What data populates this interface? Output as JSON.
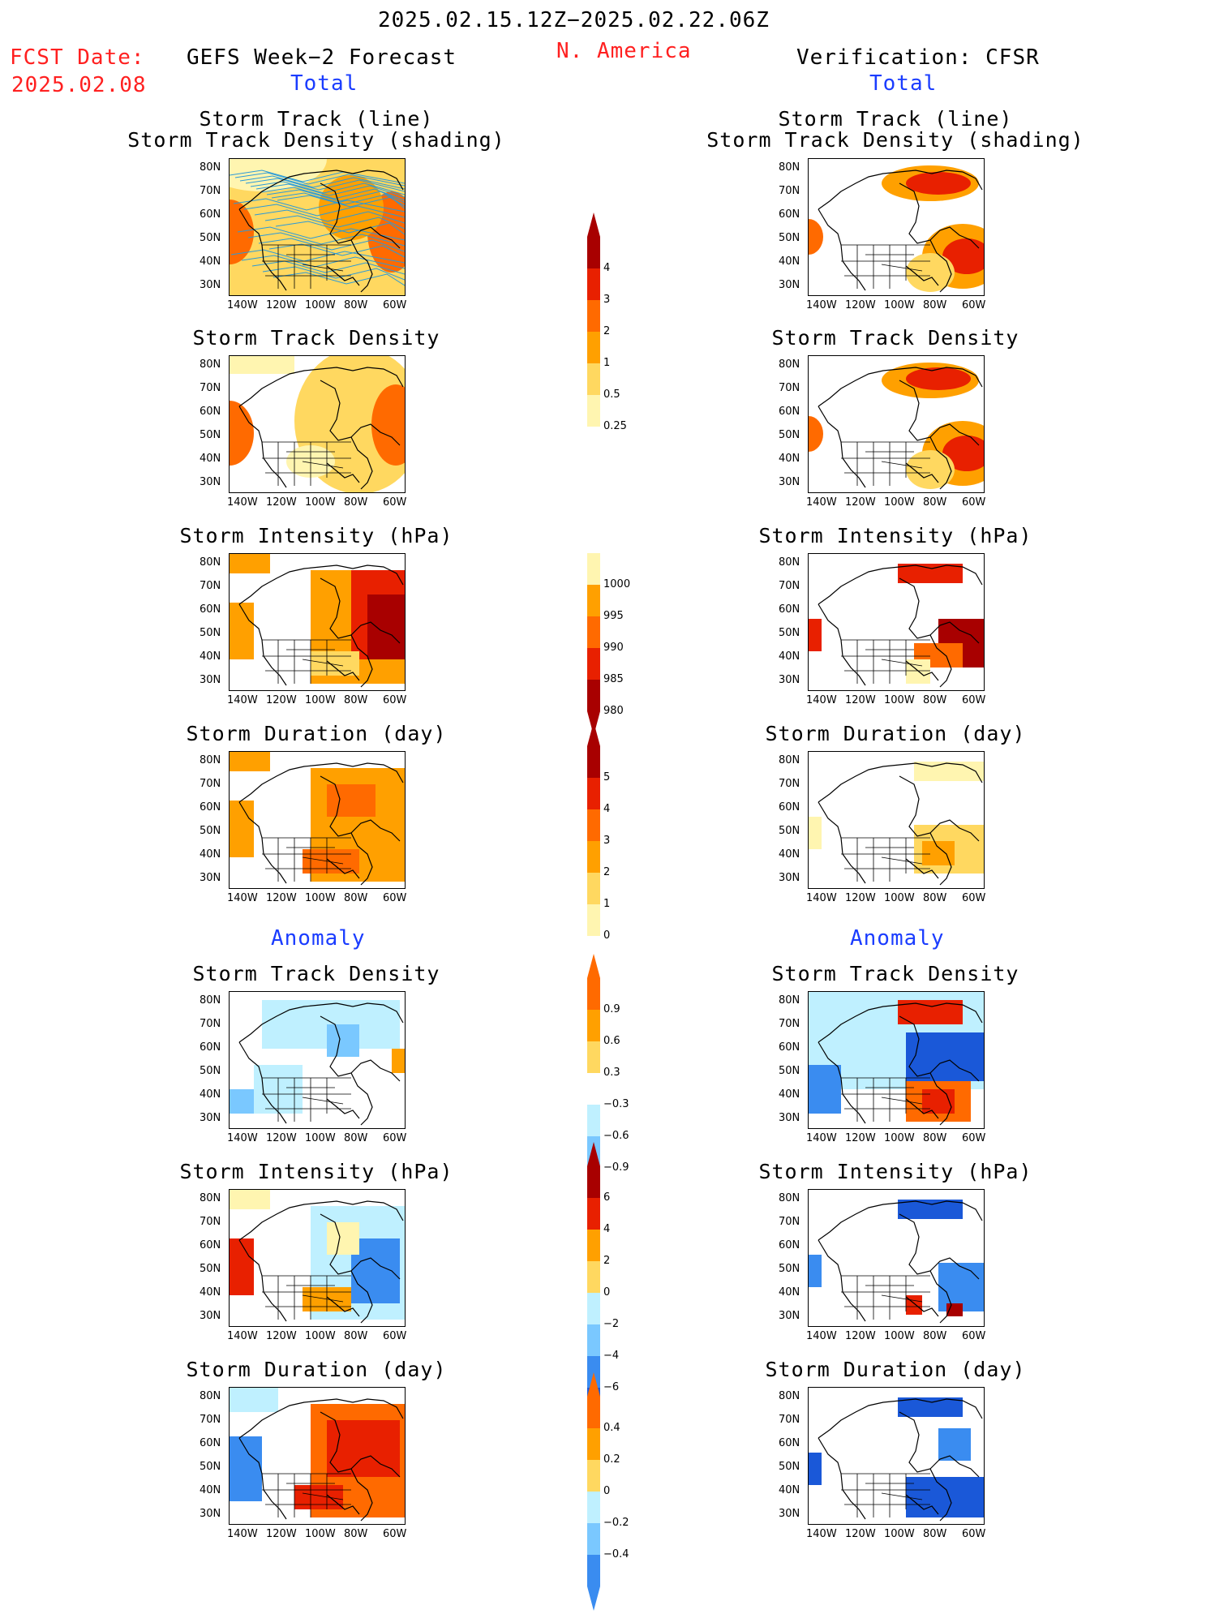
{
  "header": {
    "date_range": "2025.02.15.12Z−2025.02.22.06Z",
    "region": "N. America",
    "fcst_label": "FCST Date:",
    "fcst_date": "2025.02.08",
    "left_title": "GEFS Week−2 Forecast",
    "right_title": "Verification: CFSR",
    "section_total": "Total",
    "section_anomaly": "Anomaly"
  },
  "panel_titles": {
    "track_line": "Storm Track (line)",
    "track_shading": "Storm Track Density (shading)",
    "density": "Storm Track Density",
    "intensity": "Storm Intensity (hPa)",
    "duration": "Storm Duration (day)"
  },
  "axes": {
    "lat_labels": [
      "80N",
      "70N",
      "60N",
      "50N",
      "40N",
      "30N"
    ],
    "lon_labels": [
      "140W",
      "120W",
      "100W",
      "80W",
      "60W"
    ]
  },
  "colorbars": {
    "density_total": [
      "4",
      "3",
      "2",
      "1",
      "0.5",
      "0.25"
    ],
    "intensity_total": [
      "1000",
      "995",
      "990",
      "985",
      "980"
    ],
    "duration_total": [
      "5",
      "4",
      "3",
      "2",
      "1",
      "0"
    ],
    "density_anom": [
      "0.9",
      "0.6",
      "0.3",
      "−0.3",
      "−0.6",
      "−0.9"
    ],
    "intensity_anom": [
      "6",
      "4",
      "2",
      "0",
      "−2",
      "−4",
      "−6"
    ],
    "duration_anom": [
      "0.4",
      "0.2",
      "0",
      "−0.2",
      "−0.4"
    ]
  },
  "colors": {
    "warm": [
      "#fff5b0",
      "#ffd860",
      "#ffa000",
      "#ff6a00",
      "#e82000",
      "#a80000"
    ],
    "cool": [
      "#bff0ff",
      "#7ac8ff",
      "#3a8cf0",
      "#1a58d8"
    ],
    "track_lines": "#2a9ad8",
    "fcst_red": "#ff2020",
    "section_blue": "#1a3cff"
  }
}
